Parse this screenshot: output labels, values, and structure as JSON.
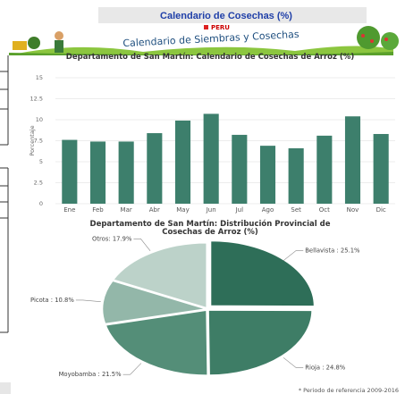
{
  "header": {
    "title": "Calendario de  Cosechas (%)"
  },
  "banner": {
    "country": "PERU",
    "title": "Calendario de Siembras y Cosechas"
  },
  "chart_data": [
    {
      "type": "bar",
      "title": "Departamento de San Martín: Calendario de Cosechas de Arroz (%)",
      "ylabel": "Porcentaje",
      "categories": [
        "Ene",
        "Feb",
        "Mar",
        "Abr",
        "May",
        "Jun",
        "Jul",
        "Ago",
        "Set",
        "Oct",
        "Nov",
        "Dic"
      ],
      "values": [
        7.6,
        7.4,
        7.4,
        8.4,
        9.9,
        10.7,
        8.2,
        6.9,
        6.6,
        8.1,
        10.4,
        8.3
      ],
      "color": "#3d7f6c",
      "ylim": [
        0,
        15
      ],
      "yticks": [
        0,
        2.5,
        5,
        7.5,
        10,
        12.5,
        15
      ],
      "grid": true
    },
    {
      "type": "pie",
      "title": "Departamento de San Martín: Distribución Provincial de Cosechas de Arroz (%)",
      "values": [
        25.1,
        24.8,
        21.5,
        10.8,
        17.9
      ],
      "value_labels": [
        "Bellavista : 25.1%",
        "Rioja : 24.8%",
        "Moyobamba : 21.5%",
        "Picota : 10.8%",
        "Otros: 17.9%"
      ],
      "colors": [
        "#2e6e58",
        "#3e7d66",
        "#548e78",
        "#93b7a9",
        "#bcd2c9"
      ]
    }
  ],
  "footnote": "* Periodo de referencia 2009-2016"
}
